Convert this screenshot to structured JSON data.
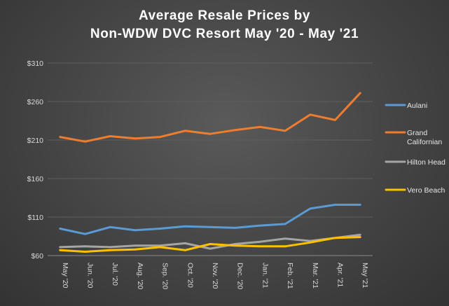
{
  "chart_data": {
    "type": "line",
    "title_lines": [
      "Average Resale Prices by",
      "Non-WDW  DVC Resort May '20 - May '21"
    ],
    "xlabel": "",
    "ylabel": "",
    "categories": [
      "May '20",
      "Jun. '20",
      "Jul. '20",
      "Aug. '20",
      "Sep. '20",
      "Oct. '20",
      "Nov. '20",
      "Dec. '20",
      "Jan. '21",
      "Feb. '21",
      "Mar. '21",
      "Apr. '21",
      "May '21"
    ],
    "ylim": [
      60,
      310
    ],
    "yticks": [
      60,
      110,
      160,
      210,
      260,
      310
    ],
    "ytick_labels": [
      "$60",
      "$110",
      "$160",
      "$210",
      "$260",
      "$310"
    ],
    "grid": "horizontal",
    "legend_position": "right",
    "series": [
      {
        "name": "Aulani",
        "color": "#5b9bd5",
        "values": [
          95,
          88,
          97,
          93,
          95,
          98,
          97,
          96,
          99,
          101,
          121,
          126,
          126
        ]
      },
      {
        "name": "Grand Californian",
        "color": "#ed7d31",
        "values": [
          214,
          208,
          215,
          212,
          214,
          222,
          218,
          223,
          227,
          222,
          243,
          236,
          271
        ]
      },
      {
        "name": "Hilton Head",
        "color": "#a5a5a5",
        "values": [
          71,
          72,
          71,
          73,
          73,
          76,
          69,
          75,
          78,
          82,
          79,
          83,
          87
        ]
      },
      {
        "name": "Vero Beach",
        "color": "#ffc000",
        "values": [
          67,
          65,
          67,
          68,
          71,
          67,
          75,
          73,
          72,
          72,
          77,
          83,
          84
        ]
      }
    ]
  }
}
